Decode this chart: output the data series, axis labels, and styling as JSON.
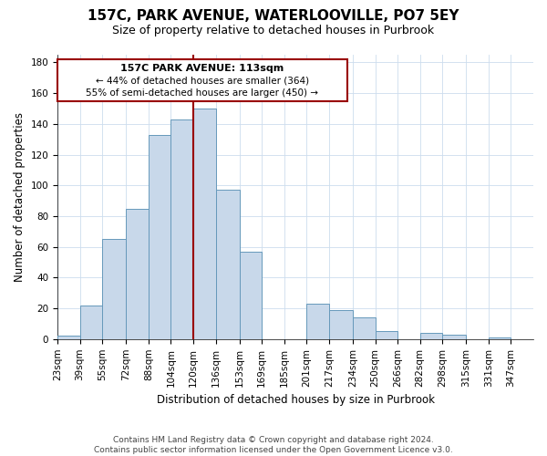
{
  "title": "157C, PARK AVENUE, WATERLOOVILLE, PO7 5EY",
  "subtitle": "Size of property relative to detached houses in Purbrook",
  "xlabel": "Distribution of detached houses by size in Purbrook",
  "ylabel": "Number of detached properties",
  "footer_line1": "Contains HM Land Registry data © Crown copyright and database right 2024.",
  "footer_line2": "Contains public sector information licensed under the Open Government Licence v3.0.",
  "bin_labels": [
    "23sqm",
    "39sqm",
    "55sqm",
    "72sqm",
    "88sqm",
    "104sqm",
    "120sqm",
    "136sqm",
    "153sqm",
    "169sqm",
    "185sqm",
    "201sqm",
    "217sqm",
    "234sqm",
    "250sqm",
    "266sqm",
    "282sqm",
    "298sqm",
    "315sqm",
    "331sqm",
    "347sqm"
  ],
  "bar_heights": [
    2,
    22,
    65,
    85,
    133,
    143,
    150,
    97,
    57,
    0,
    0,
    23,
    19,
    14,
    5,
    0,
    4,
    3,
    0,
    1,
    0
  ],
  "bar_color": "#c8d8ea",
  "bar_edge_color": "#6699bb",
  "property_label": "157C PARK AVENUE: 113sqm",
  "annotation_line1": "← 44% of detached houses are smaller (364)",
  "annotation_line2": "55% of semi-detached houses are larger (450) →",
  "vline_color": "#990000",
  "box_color": "#990000",
  "ylim": [
    0,
    185
  ],
  "yticks": [
    0,
    20,
    40,
    60,
    80,
    100,
    120,
    140,
    160,
    180
  ],
  "bin_edges": [
    23,
    39,
    55,
    72,
    88,
    104,
    120,
    136,
    153,
    169,
    185,
    201,
    217,
    234,
    250,
    266,
    282,
    298,
    315,
    331,
    347
  ],
  "title_fontsize": 11,
  "subtitle_fontsize": 9,
  "label_fontsize": 8.5,
  "tick_fontsize": 7.5,
  "footer_fontsize": 6.5
}
